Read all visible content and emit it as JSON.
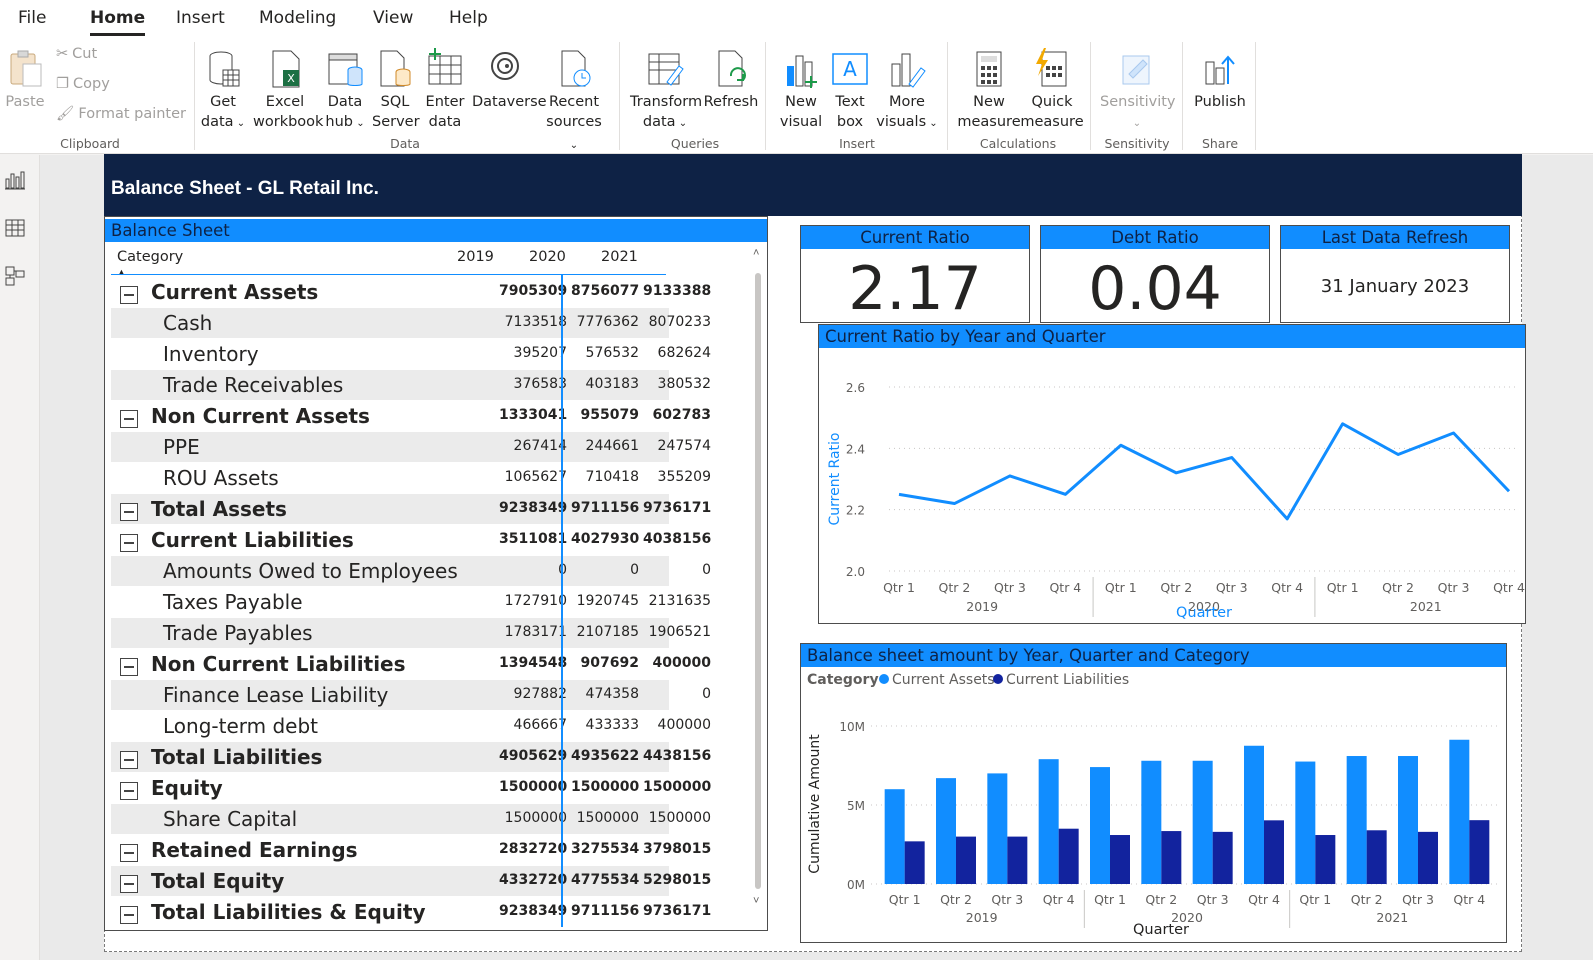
{
  "menu": {
    "tabs": [
      {
        "label": "File",
        "active": false
      },
      {
        "label": "Home",
        "active": true
      },
      {
        "label": "Insert",
        "active": false
      },
      {
        "label": "Modeling",
        "active": false
      },
      {
        "label": "View",
        "active": false
      },
      {
        "label": "Help",
        "active": false
      }
    ]
  },
  "ribbon": {
    "clipboard": {
      "paste": "Paste",
      "cut": "Cut",
      "copy": "Copy",
      "format_painter": "Format painter",
      "group": "Clipboard"
    },
    "data": {
      "get_data": [
        "Get",
        "data"
      ],
      "excel": [
        "Excel",
        "workbook"
      ],
      "data_hub": [
        "Data",
        "hub"
      ],
      "sql": [
        "SQL",
        "Server"
      ],
      "enter": [
        "Enter",
        "data"
      ],
      "dataverse": "Dataverse",
      "recent": [
        "Recent",
        "sources"
      ],
      "group": "Data"
    },
    "queries": {
      "transform": [
        "Transform",
        "data"
      ],
      "refresh": "Refresh",
      "group": "Queries"
    },
    "insert": {
      "new_visual": [
        "New",
        "visual"
      ],
      "text_box": [
        "Text",
        "box"
      ],
      "more_visuals": [
        "More",
        "visuals"
      ],
      "group": "Insert"
    },
    "calculations": {
      "new_measure": [
        "New",
        "measure"
      ],
      "quick_measure": [
        "Quick",
        "measure"
      ],
      "group": "Calculations"
    },
    "sensitivity": {
      "label": "Sensitivity",
      "group": "Sensitivity"
    },
    "share": {
      "publish": "Publish",
      "group": "Share"
    }
  },
  "report": {
    "title": "Balance Sheet - GL Retail Inc.",
    "colors": {
      "header": "#0e2245",
      "accent": "#118dff",
      "dark_series": "#12239e"
    }
  },
  "matrix": {
    "title": "Balance Sheet",
    "column_header": "Category",
    "years": [
      "2019",
      "2020",
      "2021"
    ],
    "rows": [
      {
        "label": "Current Assets",
        "level": "parent",
        "values": [
          "7905309",
          "8756077",
          "9133388"
        ]
      },
      {
        "label": "Cash",
        "level": "child",
        "values": [
          "7133518",
          "7776362",
          "8070233"
        ]
      },
      {
        "label": "Inventory",
        "level": "child",
        "values": [
          "395207",
          "576532",
          "682624"
        ]
      },
      {
        "label": "Trade Receivables",
        "level": "child",
        "values": [
          "376583",
          "403183",
          "380532"
        ]
      },
      {
        "label": "Non Current Assets",
        "level": "parent",
        "values": [
          "1333041",
          "955079",
          "602783"
        ]
      },
      {
        "label": "PPE",
        "level": "child",
        "values": [
          "267414",
          "244661",
          "247574"
        ]
      },
      {
        "label": "ROU Assets",
        "level": "child",
        "values": [
          "1065627",
          "710418",
          "355209"
        ]
      },
      {
        "label": "Total Assets",
        "level": "parent",
        "values": [
          "9238349",
          "9711156",
          "9736171"
        ]
      },
      {
        "label": "Current Liabilities",
        "level": "parent",
        "values": [
          "3511081",
          "4027930",
          "4038156"
        ]
      },
      {
        "label": "Amounts Owed to Employees",
        "level": "child",
        "values": [
          "0",
          "0",
          "0"
        ]
      },
      {
        "label": "Taxes Payable",
        "level": "child",
        "values": [
          "1727910",
          "1920745",
          "2131635"
        ]
      },
      {
        "label": "Trade Payables",
        "level": "child",
        "values": [
          "1783171",
          "2107185",
          "1906521"
        ]
      },
      {
        "label": "Non Current Liabilities",
        "level": "parent",
        "values": [
          "1394548",
          "907692",
          "400000"
        ]
      },
      {
        "label": "Finance Lease Liability",
        "level": "child",
        "values": [
          "927882",
          "474358",
          "0"
        ]
      },
      {
        "label": "Long-term debt",
        "level": "child",
        "values": [
          "466667",
          "433333",
          "400000"
        ]
      },
      {
        "label": "Total Liabilities",
        "level": "parent",
        "values": [
          "4905629",
          "4935622",
          "4438156"
        ]
      },
      {
        "label": "Equity",
        "level": "parent",
        "values": [
          "1500000",
          "1500000",
          "1500000"
        ]
      },
      {
        "label": "Share Capital",
        "level": "child",
        "values": [
          "1500000",
          "1500000",
          "1500000"
        ]
      },
      {
        "label": "Retained Earnings",
        "level": "parent",
        "values": [
          "2832720",
          "3275534",
          "3798015"
        ]
      },
      {
        "label": "Total Equity",
        "level": "parent",
        "values": [
          "4332720",
          "4775534",
          "5298015"
        ]
      },
      {
        "label": "Total Liabilities & Equity",
        "level": "parent",
        "values": [
          "9238349",
          "9711156",
          "9736171"
        ]
      }
    ]
  },
  "cards": {
    "current_ratio": {
      "title": "Current Ratio",
      "value": "2.17"
    },
    "debt_ratio": {
      "title": "Debt Ratio",
      "value": "0.04"
    },
    "last_refresh": {
      "title": "Last Data Refresh",
      "value": "31 January 2023"
    }
  },
  "chart_data": [
    {
      "type": "line",
      "title": "Current Ratio by Year and Quarter",
      "xlabel": "Quarter",
      "ylabel": "Current Ratio",
      "ylim": [
        2.0,
        2.6
      ],
      "yticks": [
        "2.0",
        "2.2",
        "2.4",
        "2.6"
      ],
      "categories": [
        "Qtr 1",
        "Qtr 2",
        "Qtr 3",
        "Qtr 4",
        "Qtr 1",
        "Qtr 2",
        "Qtr 3",
        "Qtr 4",
        "Qtr 1",
        "Qtr 2",
        "Qtr 3",
        "Qtr 4"
      ],
      "years": [
        "2019",
        "2020",
        "2021"
      ],
      "series": [
        {
          "values": [
            2.25,
            2.22,
            2.31,
            2.25,
            2.41,
            2.32,
            2.37,
            2.17,
            2.48,
            2.38,
            2.45,
            2.26
          ]
        }
      ],
      "color": "#118dff"
    },
    {
      "type": "bar",
      "title": "Balance sheet amount by Year, Quarter and Category",
      "legend_title": "Category",
      "xlabel": "Quarter",
      "ylabel": "Cumulative Amount",
      "ylim": [
        0,
        10000000
      ],
      "yticks": [
        "0M",
        "5M",
        "10M"
      ],
      "categories": [
        "Qtr 1",
        "Qtr 2",
        "Qtr 3",
        "Qtr 4",
        "Qtr 1",
        "Qtr 2",
        "Qtr 3",
        "Qtr 4",
        "Qtr 1",
        "Qtr 2",
        "Qtr 3",
        "Qtr 4"
      ],
      "years": [
        "2019",
        "2020",
        "2021"
      ],
      "series": [
        {
          "name": "Current Assets",
          "color": "#118dff",
          "values": [
            6000000,
            6700000,
            7000000,
            7900000,
            7400000,
            7800000,
            7800000,
            8750000,
            7750000,
            8100000,
            8100000,
            9130000
          ]
        },
        {
          "name": "Current Liabilities",
          "color": "#12239e",
          "values": [
            2700000,
            3000000,
            3000000,
            3500000,
            3100000,
            3350000,
            3300000,
            4030000,
            3100000,
            3400000,
            3300000,
            4040000
          ]
        }
      ]
    }
  ]
}
